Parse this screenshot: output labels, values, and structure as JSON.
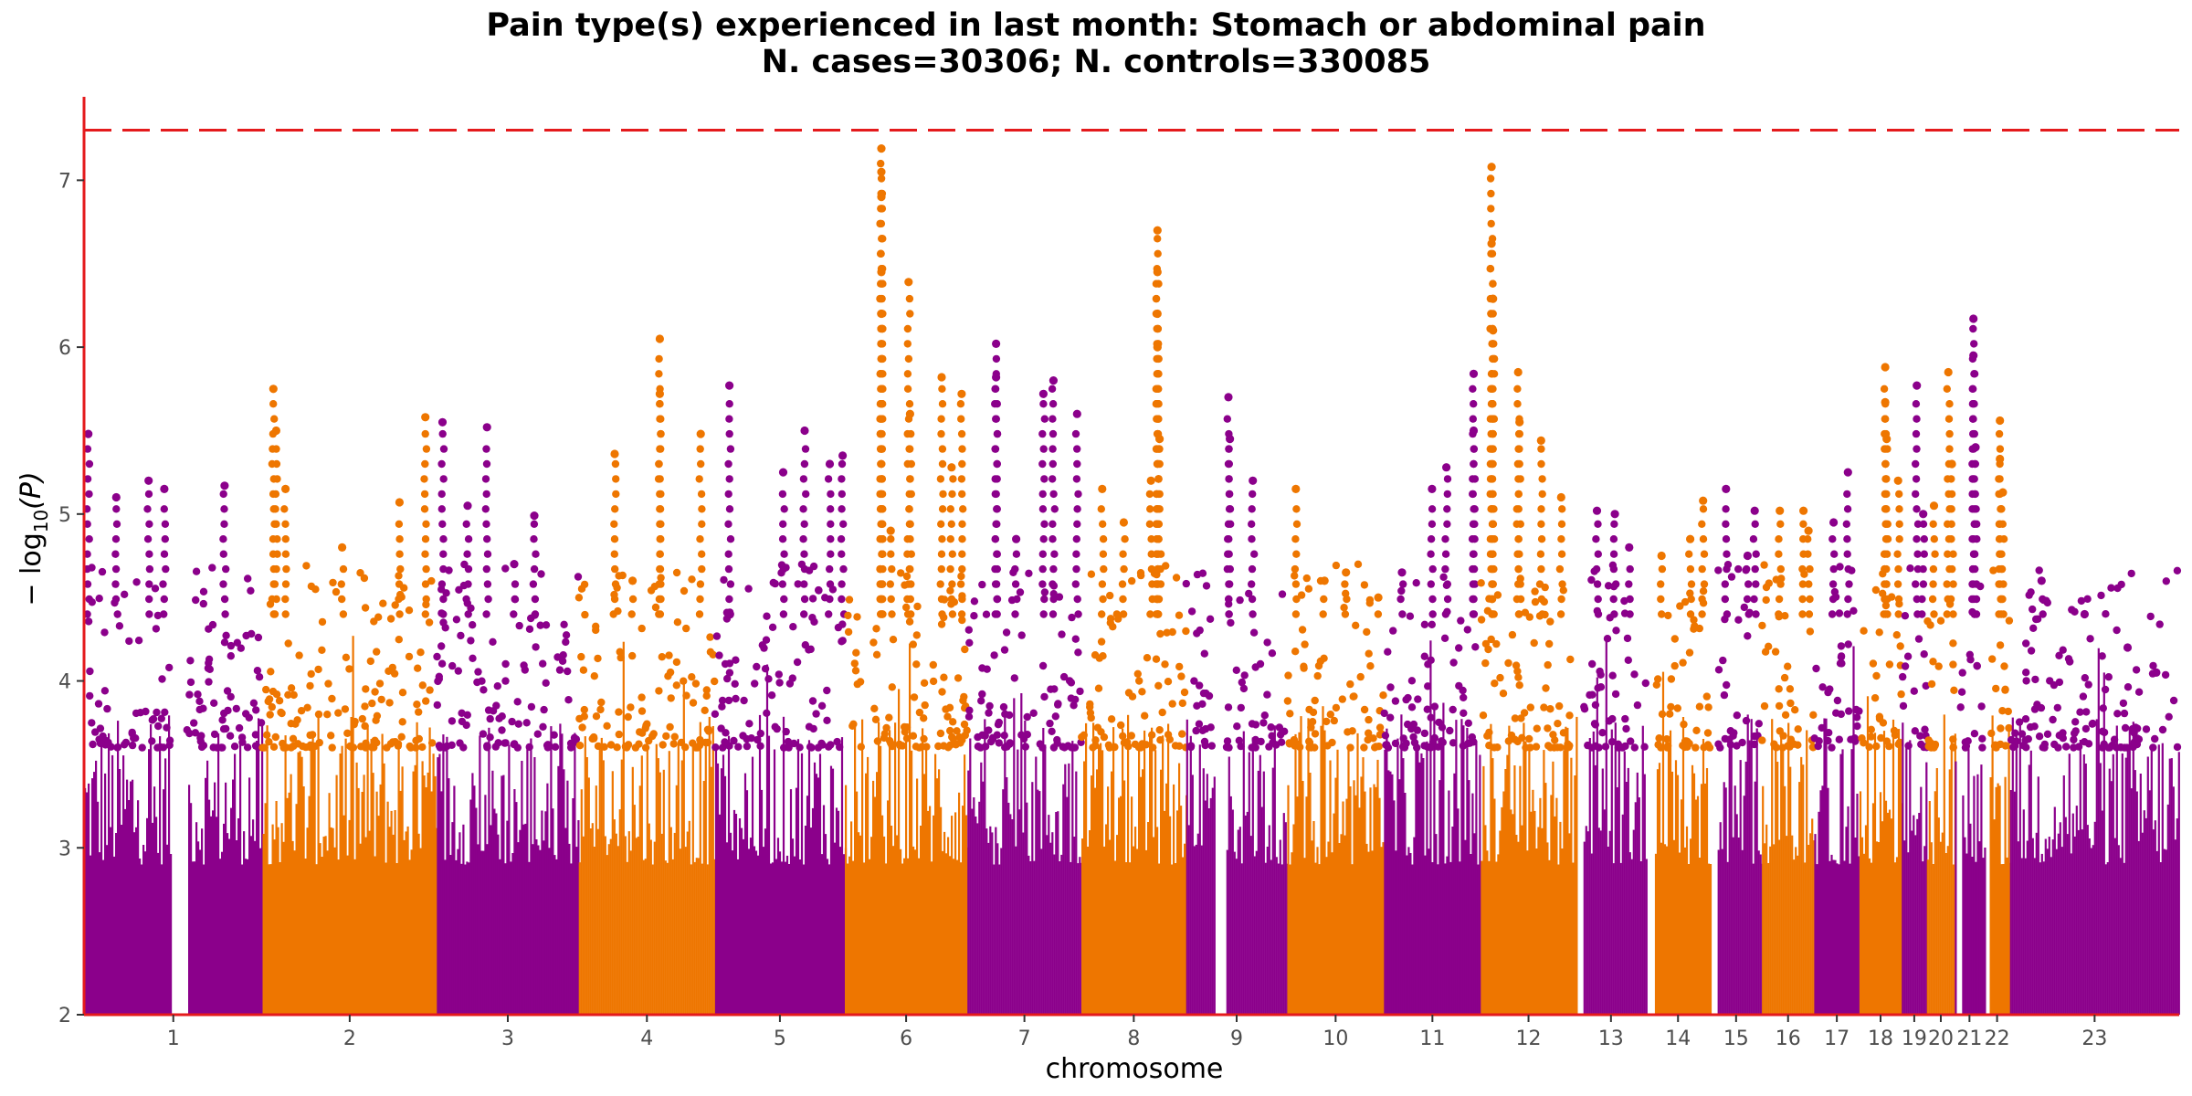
{
  "chart_data": {
    "type": "scatter",
    "subtype": "manhattan",
    "title": "Pain type(s) experienced in last month: Stomach or abdominal pain",
    "subtitle": "N. cases=30306; N. controls=330085",
    "xlabel": "chromosome",
    "ylabel_main": "− log",
    "ylabel_sub": "10",
    "ylabel_tail": "(P)",
    "ylim": [
      2,
      7.5
    ],
    "y_ticks": [
      2,
      3,
      4,
      5,
      6,
      7
    ],
    "y_tick_labels": [
      "2",
      "3",
      "4",
      "5",
      "6",
      "7"
    ],
    "x_range": [
      0,
      2922
    ],
    "significance_line": 7.3,
    "grid": false,
    "legend": "none",
    "colors": {
      "odd": "#8B008B",
      "even": "#EE7600",
      "threshold": "#E41A1C",
      "axis": "#E41A1C"
    },
    "chromosomes": [
      {
        "label": "1",
        "start": 0,
        "end": 249,
        "gaps": [
          [
            120,
            143
          ]
        ],
        "peaks": [
          [
            6,
            5.48
          ],
          [
            45,
            5.1
          ],
          [
            90,
            5.2
          ],
          [
            112,
            5.15
          ],
          [
            196,
            5.17
          ]
        ]
      },
      {
        "label": "2",
        "start": 249,
        "end": 492,
        "peaks": [
          [
            264,
            5.75
          ],
          [
            268,
            5.5
          ],
          [
            281,
            5.15
          ],
          [
            360,
            4.8
          ],
          [
            440,
            5.07
          ],
          [
            476,
            5.58
          ]
        ]
      },
      {
        "label": "3",
        "start": 492,
        "end": 690,
        "peaks": [
          [
            500,
            5.55
          ],
          [
            535,
            5.05
          ],
          [
            562,
            5.52
          ],
          [
            600,
            4.7
          ],
          [
            628,
            4.99
          ]
        ]
      },
      {
        "label": "4",
        "start": 690,
        "end": 880,
        "peaks": [
          [
            740,
            5.36
          ],
          [
            765,
            4.6
          ],
          [
            803,
            6.05
          ],
          [
            803,
            5.72
          ],
          [
            860,
            5.48
          ]
        ]
      },
      {
        "label": "5",
        "start": 880,
        "end": 1061,
        "peaks": [
          [
            900,
            5.77
          ],
          [
            975,
            5.25
          ],
          [
            1005,
            5.5
          ],
          [
            1040,
            5.3
          ],
          [
            1058,
            5.35
          ]
        ]
      },
      {
        "label": "6",
        "start": 1061,
        "end": 1232,
        "peaks": [
          [
            1112,
            7.19
          ],
          [
            1112,
            7.05
          ],
          [
            1112,
            6.9
          ],
          [
            1112,
            6.45
          ],
          [
            1112,
            6.2
          ],
          [
            1125,
            4.9
          ],
          [
            1150,
            6.39
          ],
          [
            1152,
            5.6
          ],
          [
            1196,
            5.82
          ],
          [
            1210,
            5.28
          ],
          [
            1224,
            5.72
          ]
        ]
      },
      {
        "label": "7",
        "start": 1232,
        "end": 1391,
        "peaks": [
          [
            1272,
            6.02
          ],
          [
            1272,
            5.82
          ],
          [
            1300,
            4.85
          ],
          [
            1338,
            5.72
          ],
          [
            1352,
            5.8
          ],
          [
            1385,
            5.6
          ]
        ]
      },
      {
        "label": "8",
        "start": 1391,
        "end": 1537,
        "peaks": [
          [
            1420,
            5.15
          ],
          [
            1450,
            4.95
          ],
          [
            1488,
            5.2
          ],
          [
            1497,
            6.7
          ],
          [
            1497,
            6.45
          ],
          [
            1497,
            6.2
          ],
          [
            1497,
            6.0
          ],
          [
            1500,
            5.45
          ]
        ]
      },
      {
        "label": "9",
        "start": 1537,
        "end": 1678,
        "gaps": [
          [
            1577,
            1593
          ]
        ],
        "peaks": [
          [
            1596,
            5.7
          ],
          [
            1598,
            5.45
          ],
          [
            1630,
            5.2
          ]
        ]
      },
      {
        "label": "10",
        "start": 1678,
        "end": 1813,
        "peaks": [
          [
            1690,
            5.15
          ],
          [
            1730,
            4.6
          ],
          [
            1760,
            4.65
          ],
          [
            1805,
            4.5
          ]
        ]
      },
      {
        "label": "11",
        "start": 1813,
        "end": 1948,
        "peaks": [
          [
            1838,
            4.65
          ],
          [
            1880,
            5.15
          ],
          [
            1900,
            5.28
          ],
          [
            1938,
            5.84
          ],
          [
            1938,
            5.5
          ]
        ]
      },
      {
        "label": "12",
        "start": 1948,
        "end": 2081,
        "peaks": [
          [
            1963,
            7.08
          ],
          [
            1963,
            6.62
          ],
          [
            1965,
            6.29
          ],
          [
            1965,
            6.1
          ],
          [
            2000,
            5.85
          ],
          [
            2002,
            5.55
          ],
          [
            2032,
            5.44
          ],
          [
            2060,
            5.1
          ]
        ]
      },
      {
        "label": "13",
        "start": 2081,
        "end": 2178,
        "gaps": [
          [
            2081,
            2090
          ]
        ],
        "peaks": [
          [
            2110,
            5.02
          ],
          [
            2135,
            5.0
          ],
          [
            2155,
            4.8
          ]
        ]
      },
      {
        "label": "14",
        "start": 2178,
        "end": 2268,
        "gaps": [
          [
            2178,
            2190
          ]
        ],
        "peaks": [
          [
            2200,
            4.75
          ],
          [
            2240,
            4.85
          ],
          [
            2258,
            5.08
          ]
        ]
      },
      {
        "label": "15",
        "start": 2268,
        "end": 2340,
        "gaps": [
          [
            2268,
            2278
          ]
        ],
        "peaks": [
          [
            2290,
            5.15
          ],
          [
            2320,
            4.75
          ],
          [
            2330,
            5.02
          ]
        ]
      },
      {
        "label": "16",
        "start": 2340,
        "end": 2413,
        "peaks": [
          [
            2365,
            5.02
          ],
          [
            2398,
            5.02
          ],
          [
            2405,
            4.9
          ]
        ]
      },
      {
        "label": "17",
        "start": 2413,
        "end": 2476,
        "peaks": [
          [
            2440,
            4.95
          ],
          [
            2460,
            5.25
          ]
        ]
      },
      {
        "label": "18",
        "start": 2476,
        "end": 2535,
        "peaks": [
          [
            2512,
            5.88
          ],
          [
            2512,
            5.67
          ],
          [
            2514,
            5.45
          ],
          [
            2530,
            5.2
          ]
        ]
      },
      {
        "label": "19",
        "start": 2535,
        "end": 2570,
        "peaks": [
          [
            2556,
            5.77
          ],
          [
            2565,
            5.0
          ]
        ]
      },
      {
        "label": "20",
        "start": 2570,
        "end": 2609,
        "peaks": [
          [
            2580,
            5.05
          ],
          [
            2600,
            5.85
          ],
          [
            2605,
            5.3
          ]
        ]
      },
      {
        "label": "21",
        "start": 2609,
        "end": 2650,
        "gaps": [
          [
            2609,
            2617
          ]
        ],
        "peaks": [
          [
            2635,
            6.17
          ],
          [
            2635,
            5.95
          ],
          [
            2638,
            5.4
          ]
        ]
      },
      {
        "label": "22",
        "start": 2650,
        "end": 2686,
        "gaps": [
          [
            2650,
            2656
          ]
        ],
        "peaks": [
          [
            2672,
            5.56
          ],
          [
            2672,
            5.33
          ],
          [
            2676,
            5.13
          ]
        ]
      },
      {
        "label": "23",
        "start": 2686,
        "end": 2922,
        "peaks": [
          [
            2730,
            4.6
          ],
          [
            2790,
            4.4
          ],
          [
            2850,
            4.2
          ],
          [
            2890,
            4.05
          ]
        ]
      }
    ]
  }
}
